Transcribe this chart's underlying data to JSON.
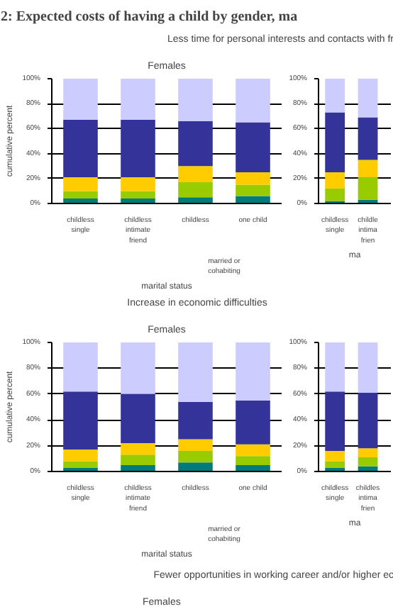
{
  "chart_data": [
    {
      "type": "other",
      "title": "2:     Expected costs of having a child by gender, ma"
    },
    {
      "type": "bar",
      "title": "Less time for personal interests and contacts with fr",
      "subtitle": "Females",
      "stacked": true,
      "grid": "y",
      "ylabel": "cumulative percent",
      "xlabel": "marital status",
      "categories": [
        "childless\nsingle",
        "childless\nintimate\nfriend",
        "childless",
        "one child"
      ],
      "annotations": [
        "married or\ncohabiting"
      ],
      "ylim": [
        0,
        100
      ],
      "yticks": [
        {
          "value": 0,
          "label": "0%"
        },
        {
          "value": 20,
          "label": "20%"
        },
        {
          "value": 40,
          "label": "40%"
        },
        {
          "value": 60,
          "label": "60%"
        },
        {
          "value": 80,
          "label": "80%"
        },
        {
          "value": 100,
          "label": "100%"
        }
      ],
      "series": [
        {
          "color": "#007a7a",
          "values": [
            4,
            4,
            5,
            6
          ]
        },
        {
          "color": "#99cc00",
          "values": [
            6,
            6,
            12,
            9
          ]
        },
        {
          "color": "#ffcc00",
          "values": [
            11,
            11,
            13,
            10
          ]
        },
        {
          "color": "#333399",
          "values": [
            46,
            46,
            36,
            40
          ]
        },
        {
          "color": "#ccccff",
          "values": [
            33,
            33,
            34,
            35
          ]
        }
      ]
    },
    {
      "type": "bar",
      "stacked": true,
      "grid": "y",
      "xlabel": "ma",
      "categories": [
        "childless\nsingle",
        "childle\nintima\nfrien"
      ],
      "ylim": [
        0,
        100
      ],
      "yticks": [
        {
          "value": 0,
          "label": "0%"
        },
        {
          "value": 20,
          "label": "20%"
        },
        {
          "value": 40,
          "label": "40%"
        },
        {
          "value": 60,
          "label": "60%"
        },
        {
          "value": 80,
          "label": "80%"
        },
        {
          "value": 100,
          "label": "100%"
        }
      ],
      "series": [
        {
          "color": "#007a7a",
          "values": [
            2,
            3
          ]
        },
        {
          "color": "#99cc00",
          "values": [
            10,
            18
          ]
        },
        {
          "color": "#ffcc00",
          "values": [
            13,
            14
          ]
        },
        {
          "color": "#333399",
          "values": [
            48,
            34
          ]
        },
        {
          "color": "#ccccff",
          "values": [
            27,
            31
          ]
        }
      ]
    },
    {
      "type": "bar",
      "title": "Increase in economic difficulties",
      "subtitle": "Females",
      "stacked": true,
      "grid": "y",
      "ylabel": "cumulative percent",
      "xlabel": "marital status",
      "categories": [
        "childless\nsingle",
        "childless\nintimate\nfriend",
        "childless",
        "one child"
      ],
      "annotations": [
        "married or\ncohabiting"
      ],
      "ylim": [
        0,
        100
      ],
      "yticks": [
        {
          "value": 0,
          "label": "0%"
        },
        {
          "value": 20,
          "label": "20%"
        },
        {
          "value": 40,
          "label": "40%"
        },
        {
          "value": 60,
          "label": "60%"
        },
        {
          "value": 80,
          "label": "80%"
        },
        {
          "value": 100,
          "label": "100%"
        }
      ],
      "series": [
        {
          "color": "#007a7a",
          "values": [
            3,
            5,
            7,
            5
          ]
        },
        {
          "color": "#99cc00",
          "values": [
            5,
            8,
            9,
            7
          ]
        },
        {
          "color": "#ffcc00",
          "values": [
            9,
            9,
            9,
            9
          ]
        },
        {
          "color": "#333399",
          "values": [
            45,
            38,
            29,
            34
          ]
        },
        {
          "color": "#ccccff",
          "values": [
            38,
            40,
            46,
            45
          ]
        }
      ]
    },
    {
      "type": "bar",
      "stacked": true,
      "grid": "y",
      "xlabel": "ma",
      "categories": [
        "childless\nsingle",
        "childles\nintima\nfrien"
      ],
      "ylim": [
        0,
        100
      ],
      "yticks": [
        {
          "value": 0,
          "label": "0%"
        },
        {
          "value": 20,
          "label": "20%"
        },
        {
          "value": 40,
          "label": "40%"
        },
        {
          "value": 60,
          "label": "60%"
        },
        {
          "value": 80,
          "label": "80%"
        },
        {
          "value": 100,
          "label": "100%"
        }
      ],
      "series": [
        {
          "color": "#007a7a",
          "values": [
            3,
            4
          ]
        },
        {
          "color": "#99cc00",
          "values": [
            5,
            7
          ]
        },
        {
          "color": "#ffcc00",
          "values": [
            8,
            7
          ]
        },
        {
          "color": "#333399",
          "values": [
            46,
            43
          ]
        },
        {
          "color": "#ccccff",
          "values": [
            38,
            39
          ]
        }
      ]
    },
    {
      "type": "other",
      "title": "Fewer opportunities in working career and/or higher ec",
      "subtitle": "Females"
    }
  ]
}
